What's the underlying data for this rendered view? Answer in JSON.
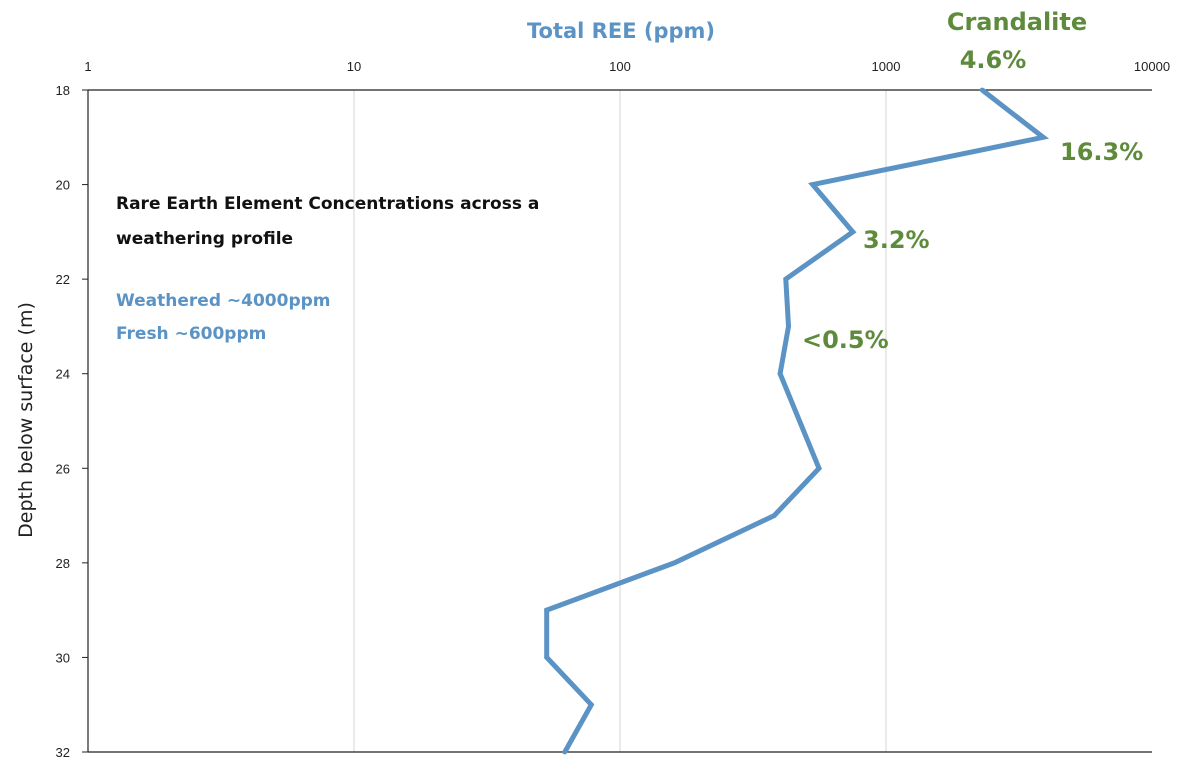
{
  "colors": {
    "series": "#5b93c5",
    "annotation": "#5e8a3c",
    "grid": "#d4d4d4",
    "axis": "#222222"
  },
  "chart_data": {
    "type": "line",
    "orientation": "depth-profile",
    "title": "",
    "xlabel": "Total REE (ppm)",
    "ylabel": "Depth below surface (m)",
    "xscale": "log",
    "xlim": [
      1,
      10000
    ],
    "ylim": [
      18,
      32
    ],
    "y_inverted": true,
    "x_axis_position": "top",
    "grid": "vertical-only",
    "x_ticks": [
      "1",
      "10",
      "100",
      "1000",
      "10000"
    ],
    "y_ticks": [
      "18",
      "20",
      "22",
      "24",
      "26",
      "28",
      "30",
      "32"
    ],
    "series": [
      {
        "points": [
          {
            "x": 2300,
            "y": 18
          },
          {
            "x": 3900,
            "y": 19
          },
          {
            "x": 530,
            "y": 20
          },
          {
            "x": 750,
            "y": 21
          },
          {
            "x": 420,
            "y": 22
          },
          {
            "x": 430,
            "y": 23
          },
          {
            "x": 400,
            "y": 24
          },
          {
            "x": 560,
            "y": 26
          },
          {
            "x": 380,
            "y": 27
          },
          {
            "x": 160,
            "y": 28
          },
          {
            "x": 53,
            "y": 29
          },
          {
            "x": 53,
            "y": 30
          },
          {
            "x": 78,
            "y": 31
          },
          {
            "x": 62,
            "y": 32
          }
        ]
      }
    ],
    "annotations": {
      "crandalite_label": "Crandalite",
      "pct_top": "4.6%",
      "pct_19": "16.3%",
      "pct_21": "3.2%",
      "pct_23": "<0.5%",
      "note_line1": "Rare Earth Element Concentrations across a",
      "note_line2": "weathering profile",
      "weathered": "Weathered  ~4000ppm",
      "fresh": "Fresh ~600ppm"
    }
  }
}
